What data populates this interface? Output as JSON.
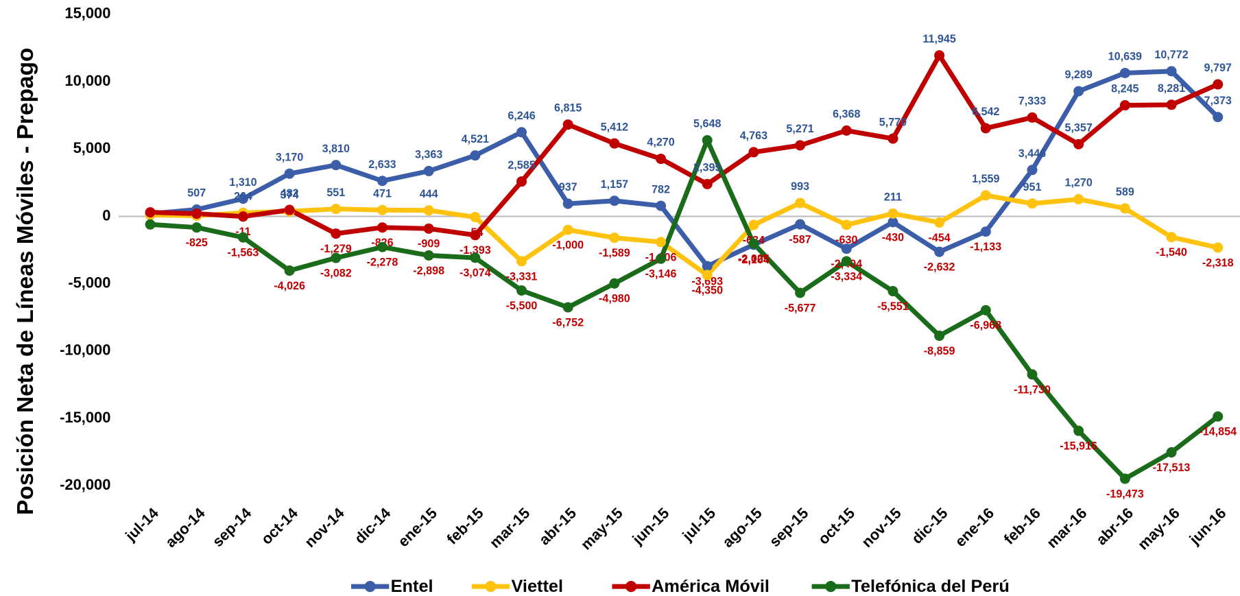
{
  "chart_data": {
    "type": "line",
    "y_label": "Posición Neta de Líneas Móviles - Prepago",
    "categories": [
      "jul-14",
      "ago-14",
      "sep-14",
      "oct-14",
      "nov-14",
      "dic-14",
      "ene-15",
      "feb-15",
      "mar-15",
      "abr-15",
      "may-15",
      "jun-15",
      "jul-15",
      "ago-15",
      "sep-15",
      "oct-15",
      "nov-15",
      "dic-15",
      "ene-16",
      "feb-16",
      "mar-16",
      "abr-16",
      "may-16",
      "jun-16"
    ],
    "series": [
      {
        "name": "Entel",
        "color": "#3c5ea8",
        "values": [
          200,
          507,
          1310,
          3170,
          3810,
          2633,
          3363,
          4521,
          6246,
          937,
          1157,
          782,
          -3693,
          -2104,
          -587,
          -2404,
          -430,
          -2632,
          -1133,
          3446,
          9289,
          10639,
          10772,
          7373
        ],
        "value_labels": [
          null,
          "507",
          "1,310",
          "3,170",
          "3,810",
          "2,633",
          "3,363",
          "4,521",
          "6,246",
          "937",
          "1,157",
          "782",
          "-3,693",
          "-2,104",
          "-587",
          "-2,404",
          "-430",
          "-2,632",
          "-1,133",
          "3,446",
          "9,289",
          "10,639",
          "10,772",
          "7,373"
        ]
      },
      {
        "name": "Viettel",
        "color": "#ffc20e",
        "values": [
          100,
          50,
          264,
          374,
          551,
          471,
          444,
          -54,
          -3331,
          -1000,
          -1589,
          -1906,
          -4350,
          -634,
          993,
          -630,
          211,
          -454,
          1559,
          951,
          1270,
          589,
          -1540,
          -2318
        ],
        "value_labels": [
          null,
          null,
          "264",
          "374",
          "551",
          "471",
          "444",
          "-54",
          "-3,331",
          "-1,000",
          "-1,589",
          "-1,906",
          "-4,350",
          "-634",
          "993",
          "-630",
          "211",
          "-454",
          "1,559",
          "951",
          "1,270",
          "589",
          "-1,540",
          "-2,318"
        ]
      },
      {
        "name": "América Móvil",
        "color": "#c00000",
        "values": [
          300,
          200,
          -11,
          482,
          -1279,
          -826,
          -909,
          -1393,
          2585,
          6815,
          5412,
          4270,
          2395,
          4763,
          5271,
          6368,
          5770,
          11945,
          6542,
          7333,
          5357,
          8245,
          8281,
          9797
        ],
        "value_labels": [
          null,
          null,
          "-11",
          "482",
          "-1,279",
          "-826",
          "-909",
          "-1,393",
          "2,585",
          "6,815",
          "5,412",
          "4,270",
          "2,395",
          "4,763",
          "5,271",
          "6,368",
          "5,770",
          "11,945",
          "6,542",
          "7,333",
          "5,357",
          "8,245",
          "8,281",
          "9,797"
        ]
      },
      {
        "name": "Telefónica del Perú",
        "color": "#1a6b1a",
        "values": [
          -600,
          -825,
          -1563,
          -4026,
          -3082,
          -2278,
          -2898,
          -3074,
          -5500,
          -6752,
          -4980,
          -3146,
          5648,
          -2025,
          -5677,
          -3334,
          -5551,
          -8859,
          -6968,
          -11730,
          -15916,
          -19473,
          -17513,
          -14854
        ],
        "value_labels": [
          null,
          "-825",
          "-1,563",
          "-4,026",
          "-3,082",
          "-2,278",
          "-2,898",
          "-3,074",
          "-5,500",
          "-6,752",
          "-4,980",
          "-3,146",
          "5,648",
          "-2,025",
          "-5,677",
          "-3,334",
          "-5,551",
          "-8,859",
          "-6,968",
          "-11,730",
          "-15,916",
          "-19,473",
          "-17,513",
          "-14,854"
        ]
      }
    ],
    "ylim": [
      -20000,
      15000
    ],
    "yticks": [
      {
        "value": 15000,
        "label": "15,000"
      },
      {
        "value": 10000,
        "label": "10,000"
      },
      {
        "value": 5000,
        "label": "5,000"
      },
      0,
      {
        "value": -5000,
        "label": "-5,000"
      },
      {
        "value": -10000,
        "label": "-10,000"
      },
      {
        "value": -15000,
        "label": "-15,000"
      },
      {
        "value": -20000,
        "label": "-20,000"
      }
    ],
    "label_colors": {
      "positive": "#2f5597",
      "negative": "#c00000"
    },
    "zero_line_color": "#bfbfbf",
    "legend": "bottom"
  }
}
